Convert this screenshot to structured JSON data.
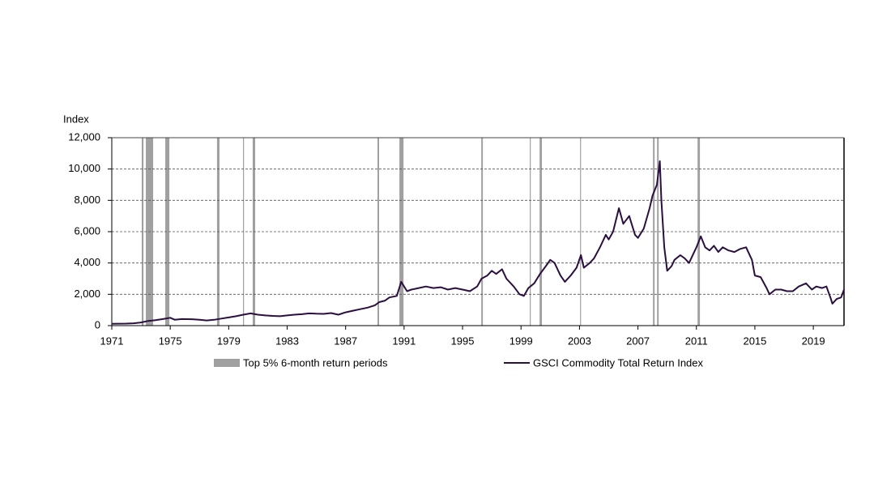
{
  "chart_data": {
    "type": "line",
    "y_label": "Index",
    "xlim": [
      1971,
      2021.1
    ],
    "xticks": [
      1971,
      1975,
      1979,
      1983,
      1987,
      1991,
      1995,
      1999,
      2003,
      2007,
      2011,
      2015,
      2019
    ],
    "ylim": [
      0,
      12000
    ],
    "yticks": [
      0,
      {
        "value": 2000,
        "label": "2,000"
      },
      {
        "value": 4000,
        "label": "4,000"
      },
      {
        "value": 6000,
        "label": "6,000"
      },
      {
        "value": 8000,
        "label": "8,000"
      },
      {
        "value": 10000,
        "label": "10,000"
      },
      {
        "value": 12000,
        "label": "12,000"
      }
    ],
    "grid": true,
    "shaded": {
      "name": "Top 5% 6-month return periods",
      "color": "#a0a0a0",
      "periods": [
        [
          1973.05,
          1973.17
        ],
        [
          1973.33,
          1973.83
        ],
        [
          1974.66,
          1974.94
        ],
        [
          1978.2,
          1978.37
        ],
        [
          1979.98,
          1980.03
        ],
        [
          1980.64,
          1980.81
        ],
        [
          1989.18,
          1989.29
        ],
        [
          1990.68,
          1990.96
        ],
        [
          1996.28,
          1996.39
        ],
        [
          1999.6,
          1999.66
        ],
        [
          2000.27,
          2000.43
        ],
        [
          2003.04,
          2003.1
        ],
        [
          2008.03,
          2008.14
        ],
        [
          2008.31,
          2008.42
        ],
        [
          2011.08,
          2011.24
        ]
      ]
    },
    "series": [
      {
        "name": "GSCI Commodity Total Return Index",
        "color": "#2b0f3f",
        "x": [
          1971.0,
          1972.0,
          1972.5,
          1973.0,
          1973.5,
          1974.0,
          1974.5,
          1975.0,
          1975.3,
          1975.8,
          1976.5,
          1977.0,
          1977.5,
          1978.0,
          1978.5,
          1979.0,
          1979.5,
          1980.0,
          1980.5,
          1981.0,
          1981.5,
          1982.0,
          1982.5,
          1983.0,
          1983.5,
          1984.0,
          1984.5,
          1985.0,
          1985.5,
          1986.0,
          1986.5,
          1987.0,
          1987.5,
          1988.0,
          1988.5,
          1989.0,
          1989.3,
          1989.7,
          1990.0,
          1990.5,
          1990.8,
          1991.0,
          1991.2,
          1991.5,
          1992.0,
          1992.5,
          1993.0,
          1993.5,
          1994.0,
          1994.5,
          1995.0,
          1995.5,
          1996.0,
          1996.3,
          1996.7,
          1997.0,
          1997.3,
          1997.7,
          1998.0,
          1998.5,
          1998.9,
          1999.2,
          1999.5,
          1999.9,
          2000.3,
          2000.7,
          2001.0,
          2001.3,
          2001.7,
          2002.0,
          2002.4,
          2002.8,
          2003.1,
          2003.3,
          2003.7,
          2004.0,
          2004.4,
          2004.8,
          2005.0,
          2005.3,
          2005.7,
          2006.0,
          2006.4,
          2006.8,
          2007.0,
          2007.4,
          2007.8,
          2008.0,
          2008.3,
          2008.5,
          2008.6,
          2008.8,
          2009.0,
          2009.3,
          2009.5,
          2009.9,
          2010.2,
          2010.5,
          2010.8,
          2011.0,
          2011.3,
          2011.6,
          2011.9,
          2012.2,
          2012.5,
          2012.8,
          2013.2,
          2013.6,
          2014.0,
          2014.4,
          2014.8,
          2015.0,
          2015.4,
          2015.8,
          2016.0,
          2016.4,
          2016.8,
          2017.2,
          2017.6,
          2018.0,
          2018.5,
          2018.9,
          2019.2,
          2019.6,
          2019.9,
          2020.2,
          2020.3,
          2020.6,
          2020.9,
          2021.1
        ],
        "values": [
          120,
          130,
          150,
          200,
          300,
          350,
          420,
          500,
          380,
          420,
          410,
          380,
          330,
          370,
          450,
          520,
          600,
          700,
          780,
          700,
          650,
          620,
          600,
          650,
          700,
          730,
          780,
          760,
          750,
          800,
          700,
          850,
          950,
          1050,
          1150,
          1300,
          1500,
          1600,
          1800,
          1900,
          2800,
          2500,
          2200,
          2300,
          2400,
          2500,
          2400,
          2450,
          2300,
          2400,
          2300,
          2200,
          2500,
          3000,
          3200,
          3500,
          3300,
          3600,
          3000,
          2500,
          2000,
          1900,
          2400,
          2700,
          3300,
          3800,
          4200,
          4000,
          3200,
          2800,
          3200,
          3700,
          4500,
          3700,
          4000,
          4300,
          5000,
          5800,
          5500,
          6000,
          7500,
          6500,
          7000,
          5800,
          5600,
          6200,
          7500,
          8300,
          9000,
          10500,
          8000,
          5000,
          3500,
          3800,
          4200,
          4500,
          4300,
          4000,
          4600,
          5000,
          5700,
          5000,
          4800,
          5100,
          4700,
          5000,
          4800,
          4700,
          4900,
          5000,
          4200,
          3200,
          3100,
          2400,
          2000,
          2300,
          2300,
          2200,
          2200,
          2500,
          2700,
          2300,
          2500,
          2400,
          2500,
          1700,
          1400,
          1700,
          1800,
          2300
        ]
      }
    ]
  }
}
